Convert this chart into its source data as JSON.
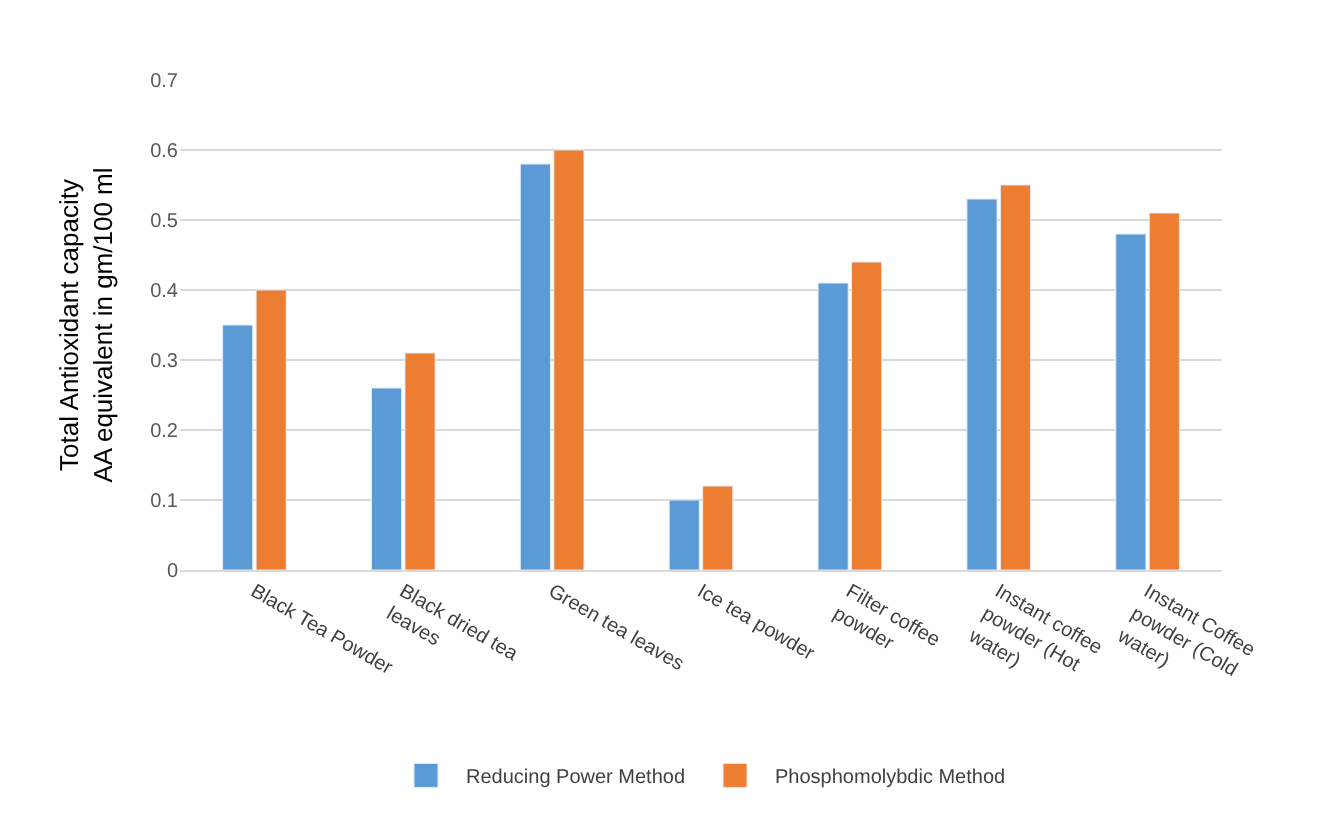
{
  "chart_data": {
    "type": "bar",
    "ylabel": "Total Antioxidant capacity AA equivalent in gm/100 ml",
    "categories": [
      "Black Tea Powder",
      "Black dried tea leaves",
      "Green tea leaves",
      "Ice tea powder",
      "Filter coffee powder",
      "Instant coffee powder (Hot water)",
      "Instant Coffee powder (Cold water)"
    ],
    "series": [
      {
        "name": "Reducing Power Method",
        "color": "#5b9bd5",
        "values": [
          0.35,
          0.26,
          0.58,
          0.1,
          0.41,
          0.53,
          0.48
        ]
      },
      {
        "name": "Phosphomolybdic Method",
        "color": "#ed7d31",
        "values": [
          0.4,
          0.31,
          0.6,
          0.12,
          0.44,
          0.55,
          0.51
        ]
      }
    ],
    "ylim": [
      0,
      0.7
    ],
    "yticks": [
      0,
      0.1,
      0.2,
      0.3,
      0.4,
      0.5,
      0.6,
      0.7
    ],
    "grid": "y",
    "legend": "bottom"
  }
}
